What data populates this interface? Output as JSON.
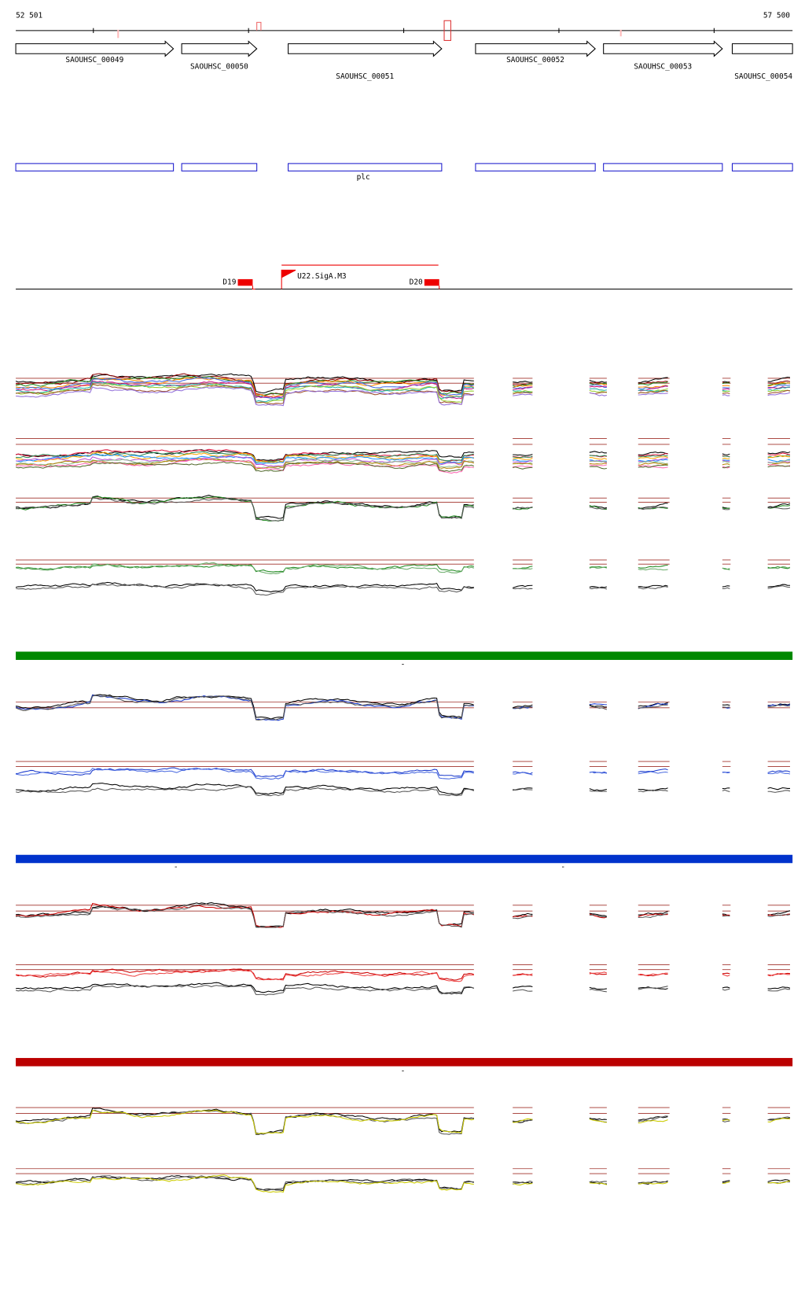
{
  "header": {
    "start": "52 501",
    "end": "57 500"
  },
  "genes": [
    {
      "label": "SAOUHSC_00049"
    },
    {
      "label": "SAOUHSC_00050"
    },
    {
      "label": "SAOUHSC_00051"
    },
    {
      "label": "SAOUHSC_00052"
    },
    {
      "label": "SAOUHSC_00053"
    },
    {
      "label": "SAOUHSC_00054"
    }
  ],
  "cds": {
    "label": "plc"
  },
  "regions": [
    {
      "label": "D19"
    },
    {
      "label": "D20"
    }
  ],
  "promoter": {
    "label": "U22.SigA.M3"
  },
  "sections": [
    {
      "labels": [
        "-"
      ]
    },
    {
      "labels": [
        "-",
        "-"
      ]
    },
    {
      "labels": [
        "-"
      ]
    }
  ]
}
